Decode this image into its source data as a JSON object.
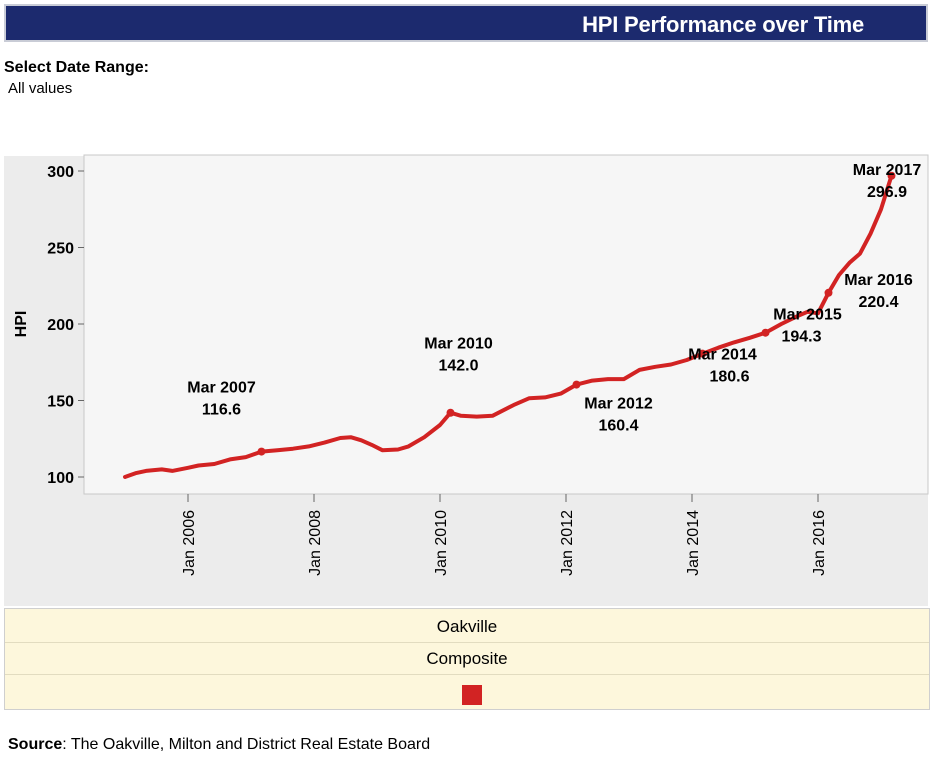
{
  "header": {
    "title": "HPI Performance over Time"
  },
  "filter": {
    "label": "Select Date Range:",
    "value": "All values"
  },
  "legend": {
    "area": "Oakville",
    "type": "Composite",
    "swatch_color": "#d22323"
  },
  "source": {
    "label": "Source",
    "text": ": The Oakville, Milton and District Real Estate Board"
  },
  "chart_data": {
    "type": "line",
    "title": "",
    "xlabel": "",
    "ylabel": "HPI",
    "ylim": [
      95,
      305
    ],
    "xlim": [
      "2005-01",
      "2017-03"
    ],
    "x_ticks": [
      "Jan 2006",
      "Jan 2008",
      "Jan 2010",
      "Jan 2012",
      "Jan 2014",
      "Jan 2016"
    ],
    "y_ticks": [
      100,
      150,
      200,
      250,
      300
    ],
    "grid": false,
    "line_color": "#d22323",
    "series": [
      {
        "points": [
          [
            "2005-01",
            100.0
          ],
          [
            "2005-03",
            102.5
          ],
          [
            "2005-05",
            104.0
          ],
          [
            "2005-08",
            105.0
          ],
          [
            "2005-10",
            104.0
          ],
          [
            "2006-01",
            106.0
          ],
          [
            "2006-03",
            107.5
          ],
          [
            "2006-06",
            108.5
          ],
          [
            "2006-09",
            111.5
          ],
          [
            "2006-12",
            113.0
          ],
          [
            "2007-03",
            116.6
          ],
          [
            "2007-06",
            117.5
          ],
          [
            "2007-09",
            118.5
          ],
          [
            "2007-12",
            120.0
          ],
          [
            "2008-03",
            122.5
          ],
          [
            "2008-06",
            125.5
          ],
          [
            "2008-08",
            126.0
          ],
          [
            "2008-10",
            124.0
          ],
          [
            "2008-12",
            121.0
          ],
          [
            "2009-02",
            117.5
          ],
          [
            "2009-05",
            118.0
          ],
          [
            "2009-07",
            120.0
          ],
          [
            "2009-10",
            126.0
          ],
          [
            "2010-01",
            134.0
          ],
          [
            "2010-03",
            142.0
          ],
          [
            "2010-05",
            140.0
          ],
          [
            "2010-08",
            139.5
          ],
          [
            "2010-11",
            140.0
          ],
          [
            "2011-03",
            147.0
          ],
          [
            "2011-06",
            151.5
          ],
          [
            "2011-09",
            152.0
          ],
          [
            "2011-12",
            154.5
          ],
          [
            "2012-03",
            160.4
          ],
          [
            "2012-06",
            163.0
          ],
          [
            "2012-09",
            164.0
          ],
          [
            "2012-12",
            164.0
          ],
          [
            "2013-03",
            170.0
          ],
          [
            "2013-06",
            172.0
          ],
          [
            "2013-09",
            173.5
          ],
          [
            "2013-12",
            176.5
          ],
          [
            "2014-03",
            180.6
          ],
          [
            "2014-06",
            184.5
          ],
          [
            "2014-09",
            188.0
          ],
          [
            "2014-12",
            191.0
          ],
          [
            "2015-03",
            194.3
          ],
          [
            "2015-06",
            200.0
          ],
          [
            "2015-09",
            205.0
          ],
          [
            "2015-11",
            208.0
          ],
          [
            "2016-01",
            207.0
          ],
          [
            "2016-03",
            220.4
          ],
          [
            "2016-05",
            232.0
          ],
          [
            "2016-07",
            240.0
          ],
          [
            "2016-09",
            246.0
          ],
          [
            "2016-11",
            259.0
          ],
          [
            "2017-01",
            275.0
          ],
          [
            "2017-03",
            296.9
          ]
        ]
      }
    ],
    "annotations": [
      {
        "date": "Mar 2007",
        "value": "116.6",
        "x": "2007-03",
        "y": 116.6
      },
      {
        "date": "Mar 2010",
        "value": "142.0",
        "x": "2010-03",
        "y": 142.0
      },
      {
        "date": "Mar 2012",
        "value": "160.4",
        "x": "2012-03",
        "y": 160.4
      },
      {
        "date": "Mar 2014",
        "value": "180.6",
        "x": "2014-03",
        "y": 180.6
      },
      {
        "date": "Mar 2015",
        "value": "194.3",
        "x": "2015-03",
        "y": 194.3
      },
      {
        "date": "Mar 2016",
        "value": "220.4",
        "x": "2016-03",
        "y": 220.4
      },
      {
        "date": "Mar 2017",
        "value": "296.9",
        "x": "2017-03",
        "y": 296.9
      }
    ]
  }
}
